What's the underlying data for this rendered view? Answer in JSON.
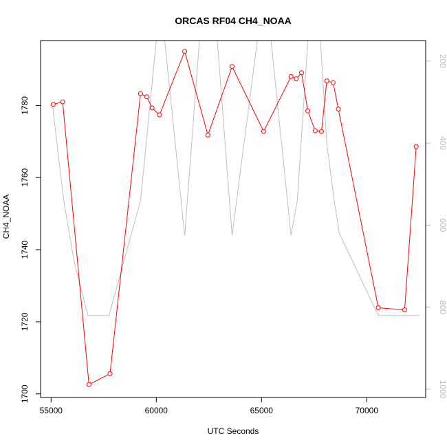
{
  "chart_data": {
    "type": "line",
    "title": "ORCAS RF04 CH4_NOAA",
    "xlabel": "UTC Seconds",
    "ylabel": "CH4_NOAA",
    "xlim": [
      54500,
      72800
    ],
    "ylim": [
      1699,
      1798
    ],
    "right_ylim_top_to_bottom": [
      150,
      1020
    ],
    "x_ticks": [
      55000,
      60000,
      65000,
      70000
    ],
    "x_tick_labels": [
      "55000",
      "60000",
      "65000",
      "70000"
    ],
    "y_ticks": [
      1700,
      1720,
      1740,
      1760,
      1780
    ],
    "y_tick_labels": [
      "1700",
      "1720",
      "1740",
      "1760",
      "1780"
    ],
    "right_ticks": [
      200,
      400,
      600,
      800,
      1000
    ],
    "right_tick_labels": [
      "200",
      "400",
      "600",
      "800",
      "1000"
    ],
    "grid": false,
    "colors": {
      "primary": "#ff0000",
      "secondary": "#bebebe"
    },
    "series": [
      {
        "axis": "left",
        "style": "line+open-circles",
        "points": [
          [
            55100,
            1780.3
          ],
          [
            55550,
            1781.0
          ],
          [
            56800,
            1702.6
          ],
          [
            57800,
            1705.6
          ],
          [
            59250,
            1783.3
          ],
          [
            59550,
            1782.4
          ],
          [
            59800,
            1779.3
          ],
          [
            60150,
            1777.4
          ],
          [
            61350,
            1795.0
          ],
          [
            62450,
            1771.8
          ],
          [
            63600,
            1790.8
          ],
          [
            65100,
            1772.8
          ],
          [
            66400,
            1788.0
          ],
          [
            66650,
            1787.4
          ],
          [
            66900,
            1789.1
          ],
          [
            67200,
            1778.5
          ],
          [
            67550,
            1773.0
          ],
          [
            67850,
            1772.8
          ],
          [
            68100,
            1786.8
          ],
          [
            68400,
            1786.3
          ],
          [
            68650,
            1779.0
          ],
          [
            70550,
            1723.9
          ],
          [
            71800,
            1723.3
          ],
          [
            72350,
            1768.6
          ]
        ]
      },
      {
        "axis": "right",
        "style": "line",
        "points": [
          [
            55050,
            300
          ],
          [
            55600,
            540
          ],
          [
            56100,
            690
          ],
          [
            56750,
            820
          ],
          [
            57750,
            820
          ],
          [
            59250,
            540
          ],
          [
            60000,
            150
          ],
          [
            60400,
            150
          ],
          [
            61350,
            625
          ],
          [
            62050,
            150
          ],
          [
            62900,
            150
          ],
          [
            63600,
            625
          ],
          [
            64800,
            150
          ],
          [
            65450,
            150
          ],
          [
            66400,
            625
          ],
          [
            66700,
            540
          ],
          [
            67200,
            150
          ],
          [
            67450,
            150
          ],
          [
            67800,
            150
          ],
          [
            68100,
            400
          ],
          [
            68450,
            540
          ],
          [
            68700,
            620
          ],
          [
            70550,
            820
          ],
          [
            72500,
            820
          ]
        ]
      }
    ]
  }
}
